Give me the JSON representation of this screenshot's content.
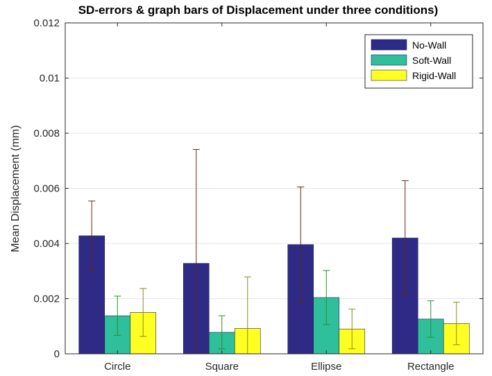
{
  "chart_data": {
    "type": "bar",
    "title": "SD-errors & graph bars of Displacement under three conditions)",
    "xlabel": "",
    "ylabel": "Mean Displacement (mm)",
    "ylim": [
      0,
      0.012
    ],
    "yticks": [
      "0",
      "0.002",
      "0.004",
      "0.006",
      "0.008",
      "0.01",
      "0.012"
    ],
    "grid": true,
    "legend_position": "top-right",
    "categories": [
      "Circle",
      "Square",
      "Ellipse",
      "Rectangle"
    ],
    "series": [
      {
        "name": "No-Wall",
        "color": "#2e2a85",
        "error_color": "#5a2a1a",
        "values": [
          0.00428,
          0.00328,
          0.00396,
          0.0042
        ],
        "errors": [
          0.00126,
          0.00413,
          0.00209,
          0.00208
        ]
      },
      {
        "name": "Soft-Wall",
        "color": "#2fbf9a",
        "error_color": "#2e8b2e",
        "values": [
          0.00138,
          0.00078,
          0.00204,
          0.00126
        ],
        "errors": [
          0.00071,
          0.0006,
          0.00098,
          0.00066
        ]
      },
      {
        "name": "Rigid-Wall",
        "color": "#ffff22",
        "error_color": "#8a8a20",
        "values": [
          0.0015,
          0.00092,
          0.0009,
          0.0011
        ],
        "errors": [
          0.00087,
          0.00187,
          0.00072,
          0.00077
        ]
      }
    ]
  }
}
